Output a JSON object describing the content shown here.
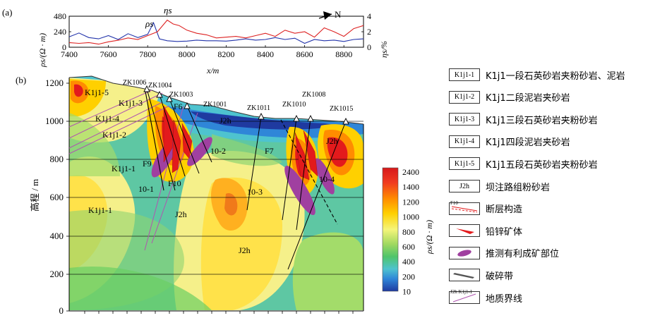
{
  "panel_a": {
    "label": "(a)",
    "north_label": "N",
    "series_rho_label": "ρs",
    "series_eta_label": "ηs",
    "y_left_label": "ρs/(Ω · m)",
    "y_right_label": "ηs/%",
    "x_label": "x/m",
    "x_ticks": [
      "7400",
      "7600",
      "7800",
      "8000",
      "8200",
      "8400",
      "8600",
      "8800"
    ],
    "y_left_ticks": [
      "480",
      "240",
      "0"
    ],
    "y_right_ticks": [
      "4",
      "2",
      "0"
    ]
  },
  "panel_b": {
    "label": "(b)",
    "y_label": "高程 / m",
    "y_ticks": [
      "1200",
      "1000",
      "800",
      "600",
      "400",
      "200",
      "0"
    ],
    "boreholes": [
      "ZK1006",
      "ZK1004",
      "ZK1003",
      "ZK1001",
      "ZK1011",
      "ZK1010",
      "ZK1008",
      "ZK1015"
    ],
    "faults": [
      "F9",
      "F10",
      "F6",
      "F7"
    ],
    "targets": [
      "10-1",
      "10-2",
      "10-3",
      "10-4"
    ],
    "unit_labels": [
      "K1j1-5",
      "K1j1-3",
      "K1j1-4",
      "K1j1-2",
      "K1j1-1",
      "K1j1-1",
      "J2h",
      "J2h",
      "J2h",
      "J2h"
    ]
  },
  "colorbar": {
    "title": "ρs/(Ω · m)",
    "ticks": [
      "2400",
      "1400",
      "1200",
      "1000",
      "800",
      "600",
      "400",
      "200",
      "10"
    ],
    "colors": [
      "#e31a1c",
      "#ff7f00",
      "#ffd200",
      "#ffff80",
      "#d4f06a",
      "#6bcf63",
      "#48c2c9",
      "#2f8ad6",
      "#1f3ea5"
    ]
  },
  "legend": [
    {
      "sym": "K1j1-1",
      "text": "K1j1一段石英砂岩夹粉砂岩、泥岩"
    },
    {
      "sym": "K1j1-2",
      "text": "K1j1二段泥岩夹砂岩"
    },
    {
      "sym": "K1j1-3",
      "text": "K1j1三段石英砂岩夹粉砂岩"
    },
    {
      "sym": "K1j1-4",
      "text": "K1j1四段泥岩夹砂岩"
    },
    {
      "sym": "K1j1-5",
      "text": "K1j1五段石英砂岩夹粉砂岩"
    },
    {
      "sym": "J2h",
      "text": "坝注路组粉砂岩"
    },
    {
      "sym": "F10",
      "text": "断层构造"
    },
    {
      "sym": "",
      "text": "铅锌矿体"
    },
    {
      "sym": "",
      "text": "推测有利成矿部位"
    },
    {
      "sym": "",
      "text": "破碎带"
    },
    {
      "sym": "J2h K1j1-1",
      "text": "地质界线"
    }
  ],
  "chart_data": [
    {
      "type": "line",
      "title": "",
      "xlabel": "x/m",
      "ylabel": "ρs/(Ω · m)",
      "y2label": "ηs/%",
      "xlim": [
        7400,
        8900
      ],
      "ylim": [
        0,
        480
      ],
      "y2lim": [
        0,
        4
      ],
      "grid": false,
      "series": [
        {
          "name": "ρs",
          "axis": "left",
          "color": "#2233aa",
          "x": [
            7400,
            7450,
            7500,
            7550,
            7600,
            7650,
            7700,
            7750,
            7800,
            7830,
            7860,
            7900,
            7950,
            8000,
            8050,
            8100,
            8150,
            8200,
            8250,
            8300,
            8350,
            8400,
            8450,
            8500,
            8550,
            8600,
            8650,
            8700,
            8750,
            8800,
            8850,
            8900
          ],
          "values": [
            160,
            220,
            150,
            130,
            180,
            120,
            210,
            150,
            200,
            380,
            130,
            100,
            90,
            95,
            110,
            100,
            100,
            95,
            110,
            130,
            110,
            120,
            150,
            120,
            140,
            60,
            120,
            100,
            110,
            90,
            120,
            130
          ]
        },
        {
          "name": "ηs",
          "axis": "right",
          "color": "#dd2222",
          "x": [
            7400,
            7450,
            7500,
            7550,
            7600,
            7650,
            7700,
            7750,
            7800,
            7850,
            7900,
            7930,
            7960,
            8000,
            8050,
            8100,
            8150,
            8200,
            8250,
            8300,
            8350,
            8400,
            8450,
            8500,
            8550,
            8600,
            8650,
            8700,
            8750,
            8800,
            8850,
            8900
          ],
          "values": [
            0.6,
            0.5,
            0.6,
            0.4,
            0.7,
            0.9,
            1.2,
            1.0,
            1.5,
            2.0,
            3.5,
            3.0,
            2.8,
            2.2,
            1.8,
            1.6,
            1.2,
            1.3,
            1.4,
            1.2,
            1.5,
            1.8,
            1.4,
            2.2,
            1.8,
            2.0,
            1.3,
            2.5,
            2.0,
            1.4,
            2.4,
            2.8
          ]
        }
      ]
    }
  ]
}
